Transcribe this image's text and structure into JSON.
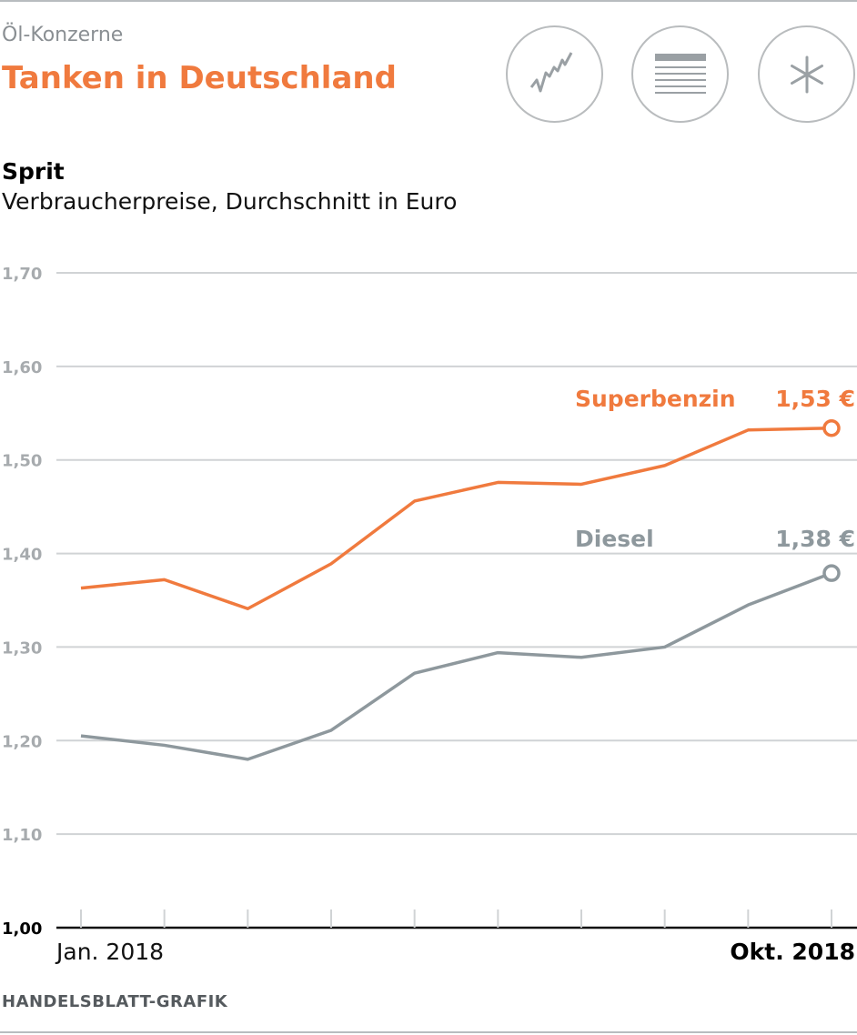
{
  "header": {
    "kicker": "Öl-Konzerne",
    "title": "Tanken in Deutschland",
    "buttons": [
      {
        "name": "chart-icon"
      },
      {
        "name": "table-icon"
      },
      {
        "name": "asterisk-icon"
      }
    ]
  },
  "chart_data": {
    "type": "line",
    "title": "Sprit",
    "subtitle": "Verbraucherpreise, Durchschnitt in Euro",
    "xlabel": "",
    "ylabel": "",
    "ylim": [
      1.0,
      1.7
    ],
    "yticks": [
      1.0,
      1.1,
      1.2,
      1.3,
      1.4,
      1.5,
      1.6,
      1.7
    ],
    "ytick_labels": [
      "1,00",
      "1,10",
      "1,20",
      "1,30",
      "1,40",
      "1,50",
      "1,60",
      "1,70"
    ],
    "x": [
      1,
      2,
      3,
      4,
      5,
      6,
      7,
      8,
      9,
      10
    ],
    "x_labels": {
      "start": "Jan. 2018",
      "end": "Okt. 2018"
    },
    "grid": true,
    "series": [
      {
        "name": "Superbenzin",
        "color": "#f07a3e",
        "values": [
          1.363,
          1.372,
          1.341,
          1.389,
          1.456,
          1.476,
          1.474,
          1.494,
          1.532,
          1.534
        ],
        "end_label": "1,53 €"
      },
      {
        "name": "Diesel",
        "color": "#8e989d",
        "values": [
          1.205,
          1.195,
          1.18,
          1.211,
          1.272,
          1.294,
          1.289,
          1.3,
          1.345,
          1.379
        ],
        "end_label": "1,38 €"
      }
    ]
  },
  "footer": {
    "source": "HANDELSBLATT-GRAFIK"
  }
}
